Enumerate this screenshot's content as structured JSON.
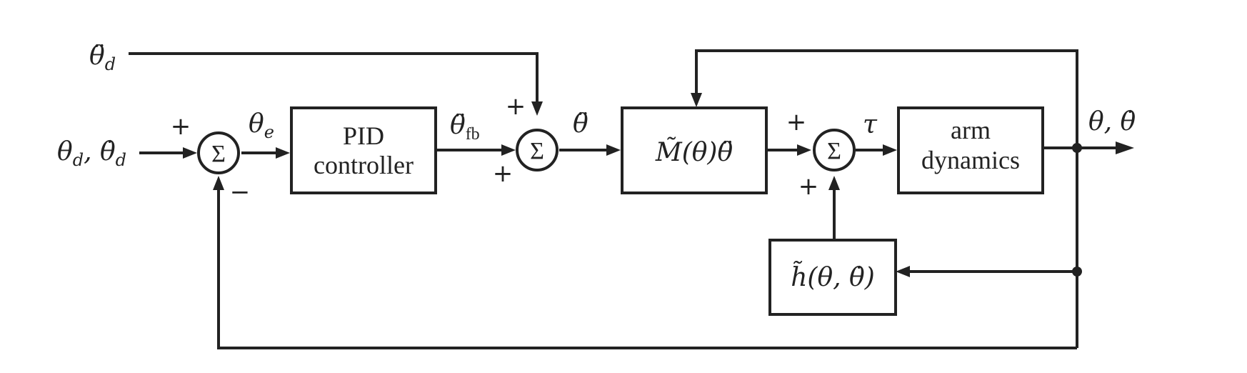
{
  "diagram": {
    "inputs": {
      "feedforward_accel": "θ̈",
      "feedforward_accel_sub": "d",
      "desired_state": "θ",
      "desired_state_sub1": "d",
      "desired_state_mid": ", θ̇",
      "desired_state_sub2": "d"
    },
    "sums": {
      "symbol": "Σ",
      "sum1_plus": "+",
      "sum1_minus": "−",
      "sum2_plus_top": "+",
      "sum2_plus_bottom": "+",
      "sum3_plus_left": "+",
      "sum3_plus_bottom": "+"
    },
    "signals": {
      "error": "θ",
      "error_sub": "e",
      "feedback_accel": "θ̈",
      "feedback_accel_sub": "fb",
      "commanded_accel": "θ̈",
      "torque": "τ",
      "output": "θ, θ̇"
    },
    "blocks": {
      "pid_line1": "PID",
      "pid_line2": "controller",
      "mass_matrix": "M̃(θ)θ̈",
      "arm_line1": "arm",
      "arm_line2": "dynamics",
      "nonlinear_terms": "h̃(θ, θ̇)"
    }
  }
}
